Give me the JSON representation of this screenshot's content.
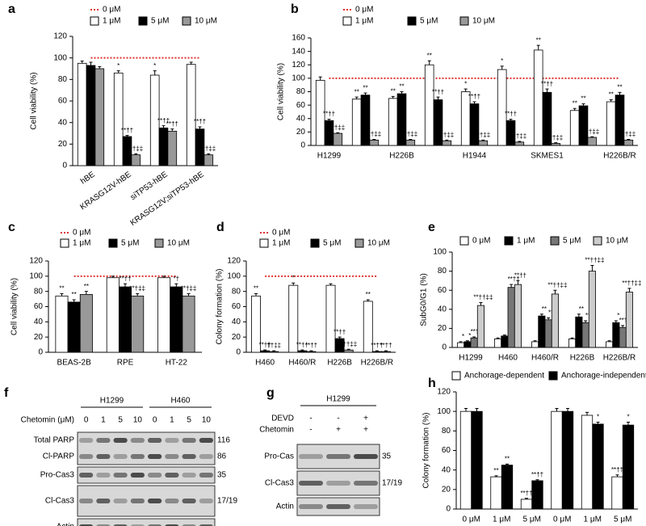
{
  "chart_data": [
    {
      "type": "bar",
      "label": "a",
      "ylabel": "Cell viability (%)",
      "categories": [
        "hBE",
        "KRASG12V-hBE",
        "siTP53-hBE",
        "KRASG12V;siTP53-hBE"
      ],
      "ylim": [
        0,
        120
      ],
      "yticks": [
        0,
        20,
        40,
        60,
        80,
        100,
        120
      ],
      "series": [
        {
          "name": "0 μM",
          "style": "reference",
          "color": "#e03030",
          "values": [
            100,
            100,
            100,
            100
          ]
        },
        {
          "name": "1 μM",
          "color": "#ffffff",
          "values": [
            95,
            86,
            84,
            94
          ],
          "errors": [
            2,
            2,
            4,
            2
          ],
          "annotations": [
            null,
            "*",
            "*",
            null
          ]
        },
        {
          "name": "5 μM",
          "color": "#000000",
          "values": [
            93,
            27,
            35,
            34
          ],
          "errors": [
            3,
            1,
            2,
            2
          ],
          "annotations": [
            null,
            "**††",
            "**††",
            "**††"
          ]
        },
        {
          "name": "10 μM",
          "color": "#999999",
          "values": [
            90,
            10,
            32,
            10
          ],
          "errors": [
            2,
            1,
            2,
            1
          ],
          "annotations": [
            null,
            "††‡‡",
            "**††",
            "††‡‡"
          ]
        }
      ]
    },
    {
      "type": "bar",
      "label": "b",
      "ylabel": "Cell viability (%)",
      "categories": [
        "H1299",
        null,
        "H226B",
        null,
        "H1944",
        null,
        "SKMES1",
        null,
        "H226B/R"
      ],
      "ylim": [
        0,
        160
      ],
      "yticks": [
        0,
        20,
        40,
        60,
        80,
        100,
        120,
        140,
        160
      ],
      "series": [
        {
          "name": "0 μM",
          "style": "reference",
          "color": "#e03030",
          "values": [
            100,
            100,
            100,
            100,
            100,
            100,
            100,
            100,
            100
          ]
        },
        {
          "name": "1 μM",
          "color": "#ffffff",
          "values": [
            97,
            69,
            70,
            120,
            80,
            113,
            142,
            52,
            65
          ],
          "errors": [
            5,
            3,
            3,
            6,
            4,
            5,
            7,
            3,
            3
          ],
          "annotations": [
            null,
            "**",
            "**",
            "**",
            "*",
            "*",
            "**",
            "**",
            "**"
          ]
        },
        {
          "name": "5 μM",
          "color": "#000000",
          "values": [
            37,
            75,
            77,
            68,
            62,
            37,
            79,
            59,
            75
          ],
          "errors": [
            2,
            3,
            3,
            4,
            3,
            2,
            5,
            3,
            4
          ],
          "annotations": [
            "**††",
            "**",
            "**",
            "**††",
            "**††",
            "**††",
            "**††",
            "**",
            "**"
          ]
        },
        {
          "name": "10 μM",
          "color": "#999999",
          "values": [
            18,
            8,
            8,
            7,
            7,
            5,
            3,
            12,
            8
          ],
          "errors": [
            1,
            1,
            1,
            1,
            1,
            1,
            1,
            1,
            1
          ],
          "annotations": [
            "††‡‡",
            "††‡‡",
            "††‡‡",
            "††‡‡",
            "††‡‡",
            "††‡‡",
            "††‡‡",
            "††‡‡",
            "††‡‡"
          ]
        }
      ]
    },
    {
      "type": "bar",
      "label": "c",
      "ylabel": "Cell viability (%)",
      "categories": [
        "BEAS-2B",
        "RPE",
        "HT-22"
      ],
      "ylim": [
        0,
        120
      ],
      "yticks": [
        0,
        20,
        40,
        60,
        80,
        100,
        120
      ],
      "series": [
        {
          "name": "0 μM",
          "style": "reference",
          "color": "#e03030",
          "values": [
            100,
            100,
            100
          ]
        },
        {
          "name": "1 μM",
          "color": "#ffffff",
          "values": [
            74,
            98,
            98
          ],
          "errors": [
            3,
            2,
            2
          ],
          "annotations": [
            "**",
            null,
            null
          ]
        },
        {
          "name": "5 μM",
          "color": "#000000",
          "values": [
            66,
            86,
            86
          ],
          "errors": [
            3,
            4,
            4
          ],
          "annotations": [
            "**",
            "**††",
            "*†"
          ]
        },
        {
          "name": "10 μM",
          "color": "#999999",
          "values": [
            76,
            74,
            74
          ],
          "errors": [
            4,
            3,
            3
          ],
          "annotations": [
            "**",
            "**†‡‡",
            "**†‡‡"
          ]
        }
      ]
    },
    {
      "type": "bar",
      "label": "d",
      "ylabel": "Colony formation (%)",
      "categories": [
        "H460",
        "H460/R",
        "H226B",
        "H226B/R"
      ],
      "ylim": [
        0,
        120
      ],
      "yticks": [
        0,
        20,
        40,
        60,
        80,
        100,
        120
      ],
      "series": [
        {
          "name": "0 μM",
          "style": "reference",
          "color": "#e03030",
          "values": [
            100,
            100,
            100,
            100
          ]
        },
        {
          "name": "1 μM",
          "color": "#ffffff",
          "values": [
            74,
            88,
            88,
            67
          ],
          "errors": [
            3,
            3,
            2,
            2
          ],
          "annotations": [
            "**",
            "*",
            null,
            "**"
          ]
        },
        {
          "name": "5 μM",
          "color": "#000000",
          "values": [
            2,
            2,
            18,
            1
          ],
          "errors": [
            1,
            1,
            2,
            1
          ],
          "annotations": [
            "**††",
            "**††",
            "**††",
            "**††"
          ]
        },
        {
          "name": "10 μM",
          "color": "#999999",
          "values": [
            1,
            1,
            3,
            1
          ],
          "errors": [
            1,
            1,
            1,
            1
          ],
          "annotations": [
            "††‡‡",
            "**††",
            "*††‡‡",
            "**††"
          ]
        }
      ]
    },
    {
      "type": "bar",
      "label": "e",
      "ylabel": "SubG0/G1 (%)",
      "categories": [
        "H1299",
        "H460",
        "H460/R",
        "H226B",
        "H226B/R"
      ],
      "ylim": [
        0,
        100
      ],
      "yticks": [
        0,
        20,
        40,
        60,
        80,
        100
      ],
      "series": [
        {
          "name": "0 μM",
          "color": "#ffffff",
          "values": [
            5,
            9,
            6,
            9,
            6
          ],
          "errors": [
            1,
            1,
            1,
            1,
            1
          ],
          "annotations": [
            "*",
            null,
            null,
            null,
            null
          ]
        },
        {
          "name": "1 μM",
          "color": "#000000",
          "values": [
            6,
            12,
            33,
            32,
            26
          ],
          "errors": [
            1,
            1,
            2,
            3,
            2
          ],
          "annotations": [
            "*",
            null,
            "**",
            "**",
            "*"
          ]
        },
        {
          "name": "5 μM",
          "color": "#777777",
          "values": [
            10,
            63,
            29,
            26,
            21
          ],
          "errors": [
            1,
            3,
            2,
            2,
            2
          ],
          "annotations": [
            "**††",
            "**††",
            "**",
            "**",
            "**††"
          ]
        },
        {
          "name": "10 μM",
          "color": "#cccccc",
          "values": [
            44,
            66,
            56,
            80,
            58
          ],
          "errors": [
            3,
            4,
            4,
            6,
            4
          ],
          "annotations": [
            "**††‡‡",
            "**††",
            "**††‡‡",
            "**††‡‡",
            "**††‡‡"
          ]
        }
      ]
    },
    {
      "type": "bar",
      "label": "h",
      "ylabel": "Colony formation (%)",
      "categories": [
        "0 μM",
        "1 μM",
        "5 μM",
        "0 μM",
        "1 μM",
        "5 μM"
      ],
      "ylim": [
        0,
        120
      ],
      "yticks": [
        0,
        20,
        40,
        60,
        80,
        100,
        120
      ],
      "series": [
        {
          "name": "Anchorage-dependent",
          "color": "#ffffff",
          "values": [
            100,
            33,
            10,
            100,
            96,
            33
          ],
          "errors": [
            3,
            1,
            1,
            3,
            3,
            2
          ],
          "annotations": [
            null,
            "**",
            "**††",
            null,
            null,
            "**††"
          ]
        },
        {
          "name": "Anchorage-independent",
          "color": "#000000",
          "values": [
            100,
            45,
            29,
            100,
            87,
            86
          ],
          "errors": [
            3,
            1,
            1,
            3,
            2,
            3
          ],
          "annotations": [
            null,
            "**",
            "**††",
            null,
            "*",
            "*"
          ]
        }
      ]
    }
  ],
  "blots": [
    {
      "label": "f",
      "groups": [
        "H1299",
        "H460"
      ],
      "conditions": [
        {
          "name": "Chetomin (μM)",
          "lanes": [
            "0",
            "1",
            "5",
            "10",
            "0",
            "1",
            "5",
            "10"
          ]
        }
      ],
      "rows": [
        {
          "names": [
            "Total PARP",
            "Cl-PARP"
          ],
          "sizes": [
            "116",
            "86"
          ]
        },
        {
          "names": [
            "Pro-Cas3"
          ],
          "sizes": [
            "35"
          ]
        },
        {
          "names": [
            "Cl-Cas3"
          ],
          "sizes": [
            "17/19"
          ]
        },
        {
          "names": [
            "Actin"
          ],
          "sizes": []
        }
      ]
    },
    {
      "label": "g",
      "groups": [
        "H1299"
      ],
      "conditions": [
        {
          "name": "DEVD",
          "lanes": [
            "-",
            "-",
            "+"
          ]
        },
        {
          "name": "Chetomin",
          "lanes": [
            "-",
            "+",
            "+"
          ]
        }
      ],
      "rows": [
        {
          "names": [
            "Pro-Cas"
          ],
          "sizes": [
            "35"
          ]
        },
        {
          "names": [
            "Cl-Cas3"
          ],
          "sizes": [
            "17/19"
          ]
        },
        {
          "names": [
            "Actin"
          ],
          "sizes": []
        }
      ]
    }
  ]
}
